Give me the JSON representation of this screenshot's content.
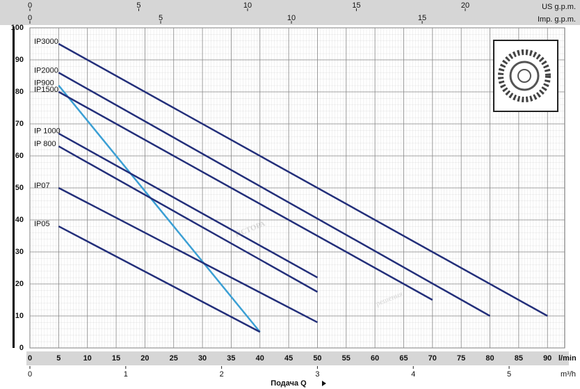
{
  "chart_data": {
    "type": "line",
    "xlim": [
      0,
      93
    ],
    "xticks": [
      0,
      5,
      10,
      15,
      20,
      25,
      30,
      35,
      40,
      45,
      50,
      55,
      60,
      65,
      70,
      75,
      80,
      85,
      90
    ],
    "xunit": "l/min",
    "ylim": [
      0,
      100
    ],
    "yticks": [
      0,
      10,
      20,
      30,
      40,
      50,
      60,
      70,
      80,
      90,
      100
    ],
    "grid": true,
    "x_label": "Подача Q",
    "top_axes": [
      {
        "label": "US g.p.m.",
        "lim": [
          0,
          24.57
        ],
        "ticks": [
          0,
          5,
          10,
          15,
          20
        ]
      },
      {
        "label": "Imp. g.p.m.",
        "lim": [
          0,
          20.45
        ],
        "ticks": [
          0,
          5,
          10,
          15
        ]
      }
    ],
    "bottom_axis2": {
      "label": "m³/h",
      "lim": [
        0,
        5.58
      ],
      "ticks": [
        0,
        1,
        2,
        3,
        4,
        5
      ]
    },
    "series": [
      {
        "name": "IP3000",
        "color": "#232f7a",
        "x": [
          5,
          90
        ],
        "values": [
          95,
          10
        ]
      },
      {
        "name": "IP2000",
        "color": "#232f7a",
        "x": [
          5,
          80
        ],
        "values": [
          86,
          10
        ]
      },
      {
        "name": "IP900",
        "color": "#3b9fd4",
        "x": [
          5,
          40
        ],
        "values": [
          82,
          5
        ]
      },
      {
        "name": "IP1500",
        "color": "#232f7a",
        "x": [
          5,
          70
        ],
        "values": [
          80,
          15
        ]
      },
      {
        "name": "IP 1000",
        "color": "#232f7a",
        "x": [
          5,
          50
        ],
        "values": [
          67,
          22
        ]
      },
      {
        "name": "IP 800",
        "color": "#232f7a",
        "x": [
          5,
          50
        ],
        "values": [
          63,
          17.5
        ]
      },
      {
        "name": "IP07",
        "color": "#232f7a",
        "x": [
          5,
          50
        ],
        "values": [
          50,
          8
        ]
      },
      {
        "name": "IP05",
        "color": "#232f7a",
        "x": [
          5,
          40
        ],
        "values": [
          38,
          5
        ]
      }
    ]
  },
  "watermark": {
    "main": "ЙСТОРА",
    "sub": "решения"
  }
}
